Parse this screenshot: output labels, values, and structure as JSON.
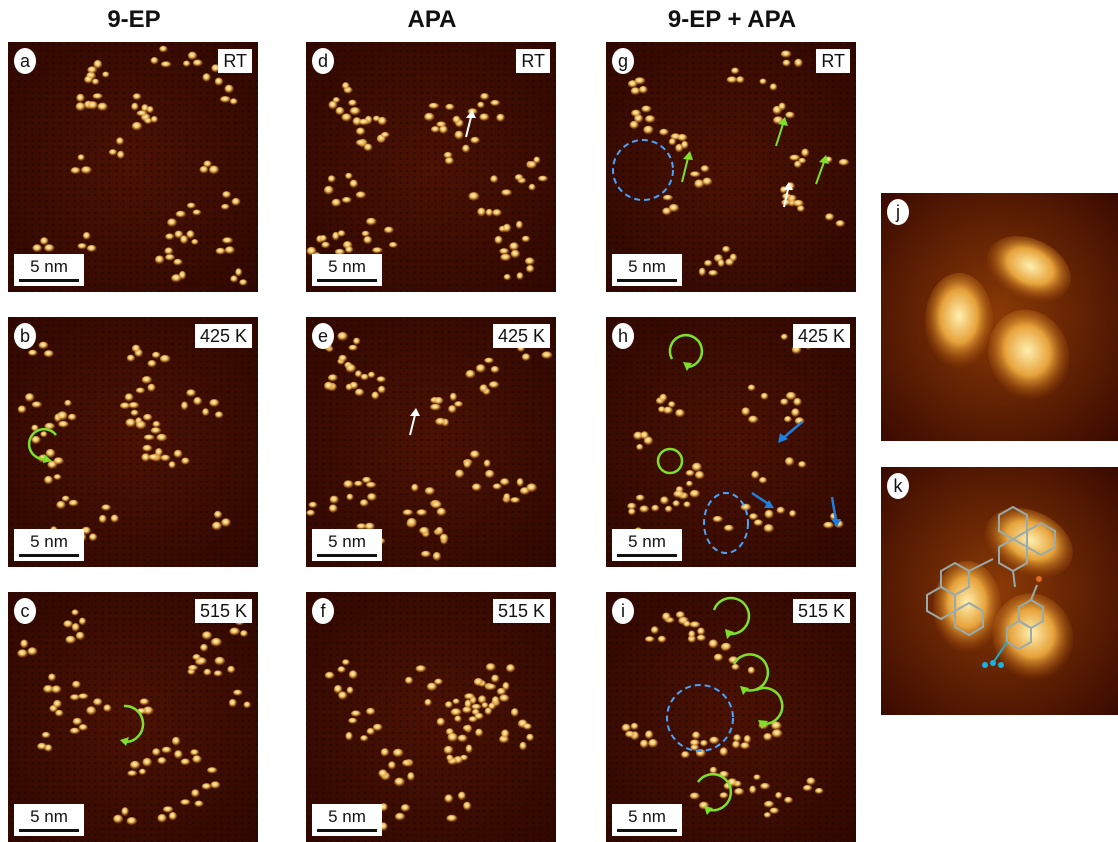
{
  "columns": {
    "col1": "9-EP",
    "col2": "APA",
    "col3": "9-EP + APA"
  },
  "scale_label": "5 nm",
  "panels": {
    "a": {
      "letter": "a",
      "condition": "RT"
    },
    "b": {
      "letter": "b",
      "condition": "425 K"
    },
    "c": {
      "letter": "c",
      "condition": "515 K"
    },
    "d": {
      "letter": "d",
      "condition": "RT"
    },
    "e": {
      "letter": "e",
      "condition": "425 K"
    },
    "f": {
      "letter": "f",
      "condition": "515 K"
    },
    "g": {
      "letter": "g",
      "condition": "RT"
    },
    "h": {
      "letter": "h",
      "condition": "425 K"
    },
    "i": {
      "letter": "i",
      "condition": "515 K"
    },
    "j": {
      "letter": "j"
    },
    "k": {
      "letter": "k"
    }
  },
  "colors": {
    "background": "#3a0a00",
    "molecule": "#f2c060",
    "arrow_green": "#7ee02a",
    "arrow_blue": "#1e7fe0",
    "arrow_white": "#ffffff",
    "dashed_circle": "#4aa3ff"
  }
}
